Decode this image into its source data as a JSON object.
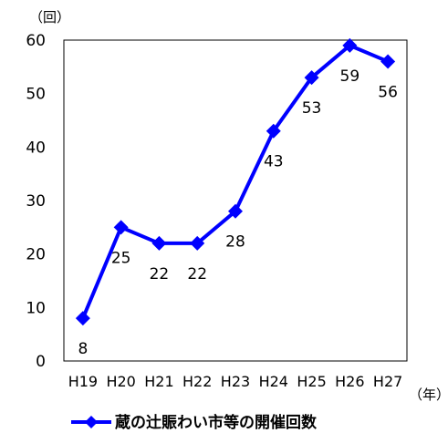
{
  "chart_data": {
    "type": "line",
    "y_unit": "（回）",
    "x_unit": "（年）",
    "categories": [
      "H19",
      "H20",
      "H21",
      "H22",
      "H23",
      "H24",
      "H25",
      "H26",
      "H27"
    ],
    "series": [
      {
        "name": "蔵の辻賑わい市等の開催回数",
        "values": [
          8,
          25,
          22,
          22,
          28,
          43,
          53,
          59,
          56
        ],
        "color": "#0000ff",
        "marker": "diamond"
      }
    ],
    "ylim": [
      0,
      60
    ],
    "yticks": [
      0,
      10,
      20,
      30,
      40,
      50,
      60
    ],
    "grid": false,
    "legend_position": "bottom"
  }
}
